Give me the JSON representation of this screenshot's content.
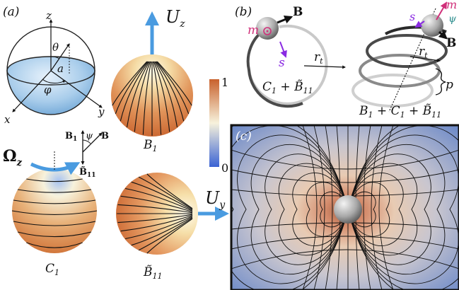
{
  "panels": {
    "a": {
      "label": "(a)",
      "axes": {
        "z": "z",
        "x": "x",
        "y": "y",
        "theta": "θ",
        "phi": "φ",
        "radius": "a"
      },
      "spheres": {
        "B1": {
          "caption": "B",
          "sub": "1",
          "velocity": "U",
          "velocity_sub": "z"
        },
        "C1": {
          "caption": "C",
          "sub": "1",
          "rotation": "Ω",
          "rotation_sub": "z"
        },
        "B11": {
          "caption": "B̃",
          "sub": "11",
          "velocity": "U",
          "velocity_sub": "y"
        }
      },
      "frame": {
        "b1": "B",
        "b1_sub": "1",
        "psi": "ψ",
        "b": "B",
        "b11": "B̃",
        "b11_sub": "11"
      },
      "colorbar": {
        "max_label": "1",
        "min_label": "0",
        "colors": [
          "#c8612c",
          "#f7f2dc",
          "#3a63d4"
        ]
      }
    },
    "b": {
      "label": "(b)",
      "left": {
        "m": "m",
        "B": "B",
        "s": "s",
        "rt": "r",
        "rt_sub": "t",
        "formula": {
          "c": "C",
          "c_sub": "1",
          "plus": " + ",
          "b": "B̃",
          "b_sub": "11"
        }
      },
      "right": {
        "m": "m",
        "B": "B",
        "s": "s",
        "psi": "ψ",
        "rt": "r",
        "rt_sub": "t",
        "p": "p",
        "formula": {
          "b1": "B",
          "b1_sub": "1",
          "plus1": " + ",
          "c": "C",
          "c_sub": "1",
          "plus2": " + ",
          "b": "B̃",
          "b_sub": "11"
        }
      }
    },
    "c": {
      "label": "(c)"
    }
  },
  "colors": {
    "accent_blue": "#4a9be0",
    "magenta": "#d0307a",
    "purple": "#8a2be2",
    "teal": "#2a8c8c"
  }
}
